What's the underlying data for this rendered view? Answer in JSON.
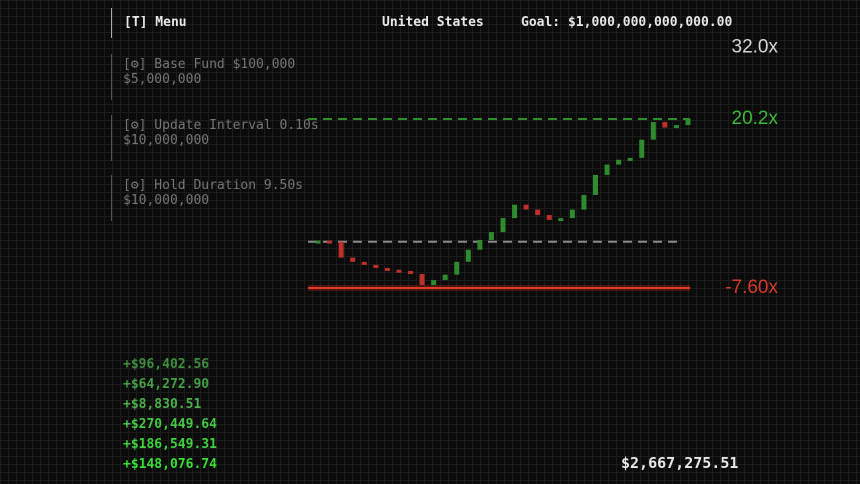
{
  "menu": {
    "label": "[T] Menu"
  },
  "header": {
    "country": "United States",
    "goal": "Goal: $1,000,000,000,000.00"
  },
  "upgrades": [
    {
      "label": "[⚙] Base Fund $100,000",
      "price": "$5,000,000"
    },
    {
      "label": "[⚙] Update Interval 0.10s",
      "price": "$10,000,000"
    },
    {
      "label": "[⚙] Hold Duration 9.50s",
      "price": "$10,000,000"
    }
  ],
  "gains": [
    "+$96,402.56",
    "+$64,272.90",
    "+$8,830.51",
    "+$270,449.64",
    "+$186,549.31",
    "+$148,076.74"
  ],
  "balance": "$2,667,275.51",
  "chart": {
    "type": "candlestick",
    "values": [
      0.2,
      0,
      -2.6,
      -3.3,
      -3.8,
      -4.3,
      -4.6,
      -4.8,
      -5.3,
      -7.1,
      -6.3,
      -5.4,
      -3.3,
      -1.3,
      0.3,
      1.6,
      3.9,
      6.1,
      5.3,
      4.4,
      3.6,
      3.9,
      5.3,
      7.7,
      11.0,
      12.7,
      13.5,
      13.8,
      16.8,
      19.7,
      18.8,
      19.2,
      20.2
    ],
    "baseline": 0,
    "top": {
      "value": 32,
      "label": "32.0x"
    },
    "target": {
      "value": 20.2,
      "label": "20.2x"
    },
    "stop": {
      "value": -7.6,
      "label": "-7.60x"
    },
    "up_color": "#2e8b2e",
    "down_color": "#c0302a"
  }
}
